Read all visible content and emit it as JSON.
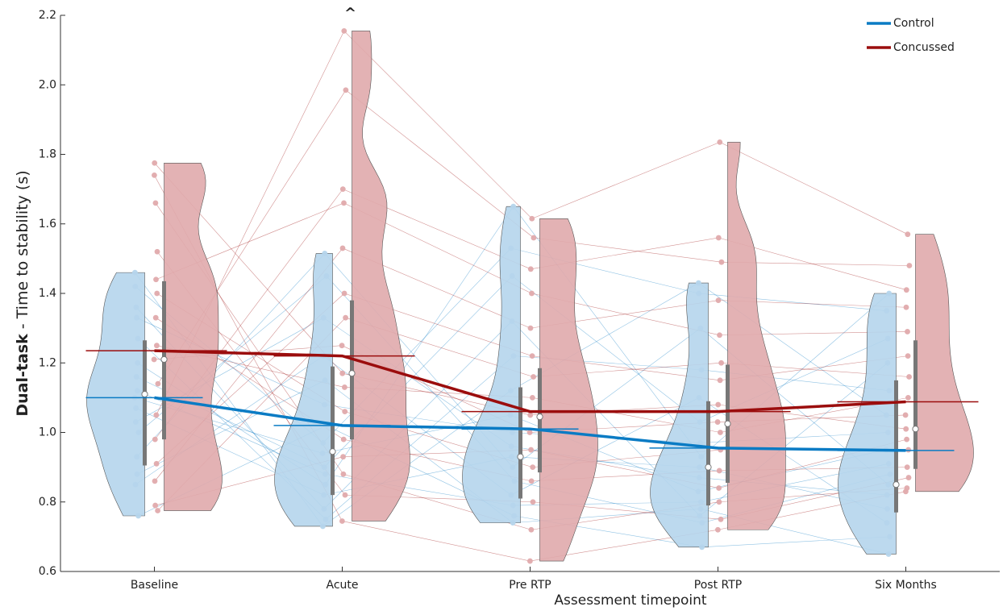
{
  "chart_data": {
    "type": "split-violin",
    "y_label_bold": "Dual-task",
    "y_label": " - Time to stability (s)",
    "x_label": "Assessment timepoint",
    "annotation": "^",
    "annotation_category": 1,
    "categories": [
      "Baseline",
      "Acute",
      "Pre RTP",
      "Post RTP",
      "Six Months"
    ],
    "ylim": [
      0.6,
      2.2
    ],
    "yticks": [
      0.6,
      0.8,
      {
        "value": 1.0,
        "label": "1.0"
      },
      1.2,
      1.4,
      1.6,
      1.8,
      {
        "value": 2.0,
        "label": "2.0"
      },
      2.2
    ],
    "legend": "upper right",
    "series": [
      {
        "name": "Control",
        "color": "#0a7bc4",
        "fill_color": "#b5d5ec",
        "side": "left",
        "values": [
          1.1,
          1.02,
          1.01,
          0.955,
          0.948
        ],
        "median": [
          1.11,
          0.945,
          0.93,
          0.9,
          0.85
        ],
        "q1": [
          0.905,
          0.82,
          0.81,
          0.79,
          0.77
        ],
        "q3": [
          1.265,
          1.19,
          1.13,
          1.09,
          1.15
        ],
        "points": [
          [
            1.1,
            0.85,
            1.36,
            0.93,
            1.2,
            0.76,
            1.46,
            1.03,
            1.16,
            0.88,
            1.27,
            1.0,
            1.42,
            1.07,
            1.33,
            1.12
          ],
          [
            0.94,
            1.22,
            0.78,
            1.515,
            0.85,
            1.02,
            0.73,
            1.33,
            0.9,
            1.15,
            0.75,
            1.45,
            0.97,
            0.82,
            1.08,
            0.88
          ],
          [
            1.05,
            0.82,
            1.32,
            0.9,
            1.65,
            0.76,
            1.12,
            0.96,
            1.45,
            0.74,
            1.22,
            0.86,
            1.53,
            0.93,
            1.0,
            0.79
          ],
          [
            0.83,
            1.1,
            0.76,
            1.3,
            0.93,
            0.67,
            1.43,
            0.87,
            1.03,
            0.78,
            1.18,
            0.74,
            1.4,
            0.9,
            0.97,
            0.8
          ],
          [
            0.95,
            0.74,
            1.2,
            0.85,
            1.4,
            0.7,
            1.05,
            0.82,
            1.27,
            0.65,
            1.12,
            0.88,
            1.35,
            0.78,
            1.0,
            0.91
          ]
        ]
      },
      {
        "name": "Concussed",
        "color": "#9b0d0d",
        "fill_color": "#e0aaac",
        "side": "right",
        "values": [
          1.235,
          1.22,
          1.06,
          1.06,
          1.088
        ],
        "median": [
          1.21,
          1.17,
          1.045,
          1.025,
          1.01
        ],
        "q1": [
          0.98,
          0.98,
          0.885,
          0.855,
          0.895
        ],
        "q3": [
          1.435,
          1.38,
          1.185,
          1.195,
          1.265
        ],
        "points": [
          [
            1.21,
            0.86,
            1.66,
            1.05,
            1.4,
            0.775,
            1.74,
            0.98,
            1.33,
            0.91,
            1.52,
            1.14,
            1.775,
            0.79,
            1.44,
            1.25
          ],
          [
            1.25,
            1.53,
            0.88,
            2.155,
            1.06,
            1.33,
            0.745,
            1.7,
            0.98,
            1.4,
            0.82,
            1.985,
            1.17,
            0.93,
            1.66,
            1.13
          ],
          [
            1.0,
            1.3,
            0.72,
            1.615,
            0.9,
            1.16,
            0.63,
            1.47,
            0.86,
            1.22,
            0.8,
            1.56,
            1.05,
            0.95,
            1.4,
            1.1
          ],
          [
            1.03,
            1.38,
            0.8,
            1.835,
            0.95,
            1.2,
            0.72,
            1.56,
            0.89,
            1.15,
            0.75,
            1.49,
            1.08,
            0.84,
            1.28,
            1.0
          ],
          [
            1.05,
            1.36,
            0.84,
            1.57,
            0.95,
            1.16,
            0.83,
            1.41,
            0.9,
            1.22,
            0.87,
            1.48,
            1.01,
            0.98,
            1.29,
            1.1
          ]
        ]
      }
    ]
  }
}
